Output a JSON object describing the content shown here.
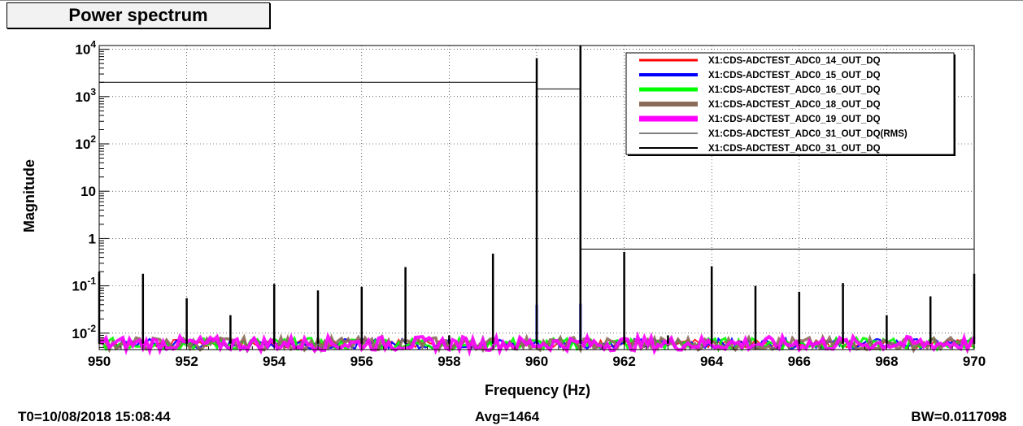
{
  "window": {
    "title": "Power spectrum"
  },
  "footer": {
    "t0": "T0=10/08/2018 15:08:44",
    "avg": "Avg=1464",
    "bw": "BW=0.0117098"
  },
  "chart_data": {
    "type": "line",
    "title": "Power spectrum",
    "xlabel": "Frequency (Hz)",
    "ylabel": "Magnitude",
    "xlim": [
      950,
      970
    ],
    "ylim": [
      0.0045,
      12000
    ],
    "yscale": "log",
    "grid": true,
    "legend_position": "top-right",
    "x_ticks": [
      950,
      952,
      954,
      956,
      958,
      960,
      962,
      964,
      966,
      968,
      970
    ],
    "y_ticks": [
      {
        "value": 0.01,
        "base": "10",
        "exp": "-2"
      },
      {
        "value": 0.1,
        "base": "10",
        "exp": "-1"
      },
      {
        "value": 1,
        "base": "1",
        "exp": ""
      },
      {
        "value": 10,
        "base": "10",
        "exp": ""
      },
      {
        "value": 100,
        "base": "10",
        "exp": "2"
      },
      {
        "value": 1000,
        "base": "10",
        "exp": "3"
      },
      {
        "value": 10000,
        "base": "10",
        "exp": "4"
      }
    ],
    "noise_floor": 0.006,
    "series": [
      {
        "name": "X1:CDS-ADCTEST_ADC0_14_OUT_DQ",
        "color": "#ff0000",
        "legend_width": 3
      },
      {
        "name": "X1:CDS-ADCTEST_ADC0_15_OUT_DQ",
        "color": "#0000ff",
        "legend_width": 4,
        "peaks": [
          {
            "x": 960,
            "y": 0.04
          },
          {
            "x": 961,
            "y": 0.042
          }
        ]
      },
      {
        "name": "X1:CDS-ADCTEST_ADC0_16_OUT_DQ",
        "color": "#00ff00",
        "legend_width": 5
      },
      {
        "name": "X1:CDS-ADCTEST_ADC0_18_OUT_DQ",
        "color": "#8b6b5a",
        "legend_width": 6
      },
      {
        "name": "X1:CDS-ADCTEST_ADC0_19_OUT_DQ",
        "color": "#ff00ff",
        "legend_width": 7
      },
      {
        "name": "X1:CDS-ADCTEST_ADC0_31_OUT_DQ(RMS)",
        "color": "#000000",
        "legend_width": 1,
        "steps": [
          {
            "x0": 950,
            "x1": 960,
            "y": 2000
          },
          {
            "x0": 960,
            "x1": 961,
            "y": 1450
          },
          {
            "x0": 961,
            "x1": 970,
            "y": 0.6
          }
        ]
      },
      {
        "name": "X1:CDS-ADCTEST_ADC0_31_OUT_DQ",
        "color": "#000000",
        "legend_width": 2,
        "peaks": [
          {
            "x": 950,
            "y": 0.2
          },
          {
            "x": 951,
            "y": 0.18
          },
          {
            "x": 952,
            "y": 0.055
          },
          {
            "x": 953,
            "y": 0.024
          },
          {
            "x": 954,
            "y": 0.11
          },
          {
            "x": 955,
            "y": 0.08
          },
          {
            "x": 956,
            "y": 0.095
          },
          {
            "x": 957,
            "y": 0.25
          },
          {
            "x": 958,
            "y": 0.009
          },
          {
            "x": 959,
            "y": 0.48
          },
          {
            "x": 960,
            "y": 6500
          },
          {
            "x": 961,
            "y": 12000
          },
          {
            "x": 962,
            "y": 0.52
          },
          {
            "x": 963,
            "y": 0.009
          },
          {
            "x": 964,
            "y": 0.26
          },
          {
            "x": 965,
            "y": 0.1
          },
          {
            "x": 966,
            "y": 0.075
          },
          {
            "x": 967,
            "y": 0.115
          },
          {
            "x": 968,
            "y": 0.024
          },
          {
            "x": 969,
            "y": 0.06
          },
          {
            "x": 970,
            "y": 0.18
          }
        ]
      }
    ]
  }
}
